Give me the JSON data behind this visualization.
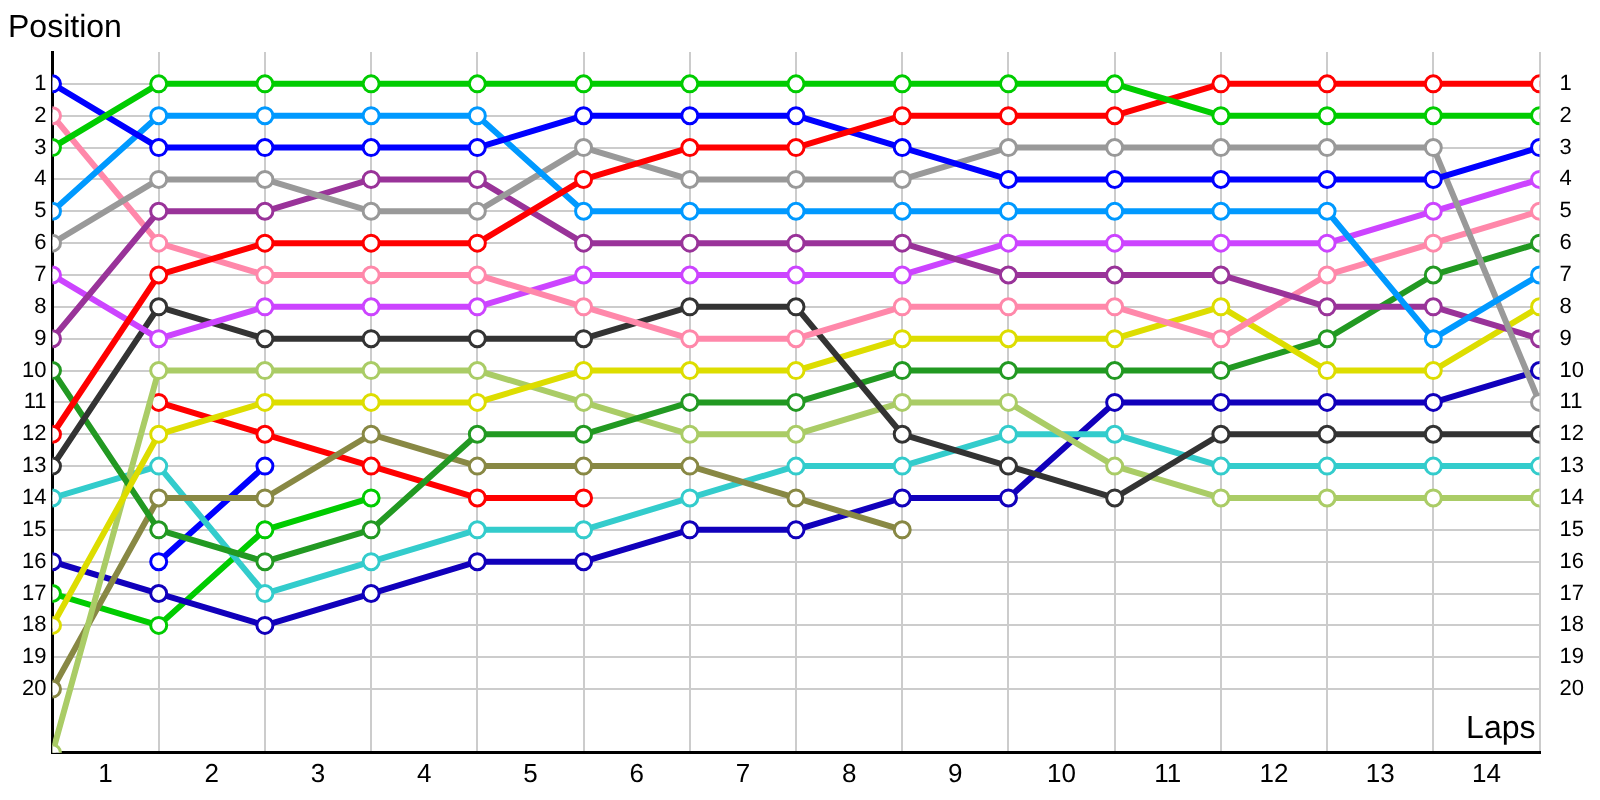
{
  "chart_data": {
    "type": "line",
    "xlabel": "Laps",
    "ylabel": "Position",
    "x": [
      0,
      1,
      2,
      3,
      4,
      5,
      6,
      7,
      8,
      9,
      10,
      11,
      12,
      13,
      14
    ],
    "xlim": [
      0,
      14
    ],
    "xticks": [
      {
        "value": 0,
        "label": null
      },
      {
        "value": 0.5,
        "label": "1"
      },
      {
        "value": 1,
        "label": null
      },
      {
        "value": 1.5,
        "label": "2"
      },
      {
        "value": 2,
        "label": null
      },
      {
        "value": 2.5,
        "label": "3"
      },
      {
        "value": 3,
        "label": null
      },
      {
        "value": 3.5,
        "label": "4"
      },
      {
        "value": 4,
        "label": null
      },
      {
        "value": 4.5,
        "label": "5"
      },
      {
        "value": 5,
        "label": null
      },
      {
        "value": 5.5,
        "label": "6"
      },
      {
        "value": 6,
        "label": null
      },
      {
        "value": 6.5,
        "label": "7"
      },
      {
        "value": 7,
        "label": null
      },
      {
        "value": 7.5,
        "label": "8"
      },
      {
        "value": 8,
        "label": null
      },
      {
        "value": 8.5,
        "label": "9"
      },
      {
        "value": 9,
        "label": null
      },
      {
        "value": 9.5,
        "label": "10"
      },
      {
        "value": 10,
        "label": null
      },
      {
        "value": 10.5,
        "label": "11"
      },
      {
        "value": 11,
        "label": null
      },
      {
        "value": 11.5,
        "label": "12"
      },
      {
        "value": 12,
        "label": null
      },
      {
        "value": 12.5,
        "label": "13"
      },
      {
        "value": 13,
        "label": null
      },
      {
        "value": 13.5,
        "label": "14"
      },
      {
        "value": 14,
        "label": null
      }
    ],
    "ylim": [
      22,
      0
    ],
    "yticks": [
      1,
      2,
      3,
      4,
      5,
      6,
      7,
      8,
      9,
      10,
      11,
      12,
      13,
      14,
      15,
      16,
      17,
      18,
      19,
      20
    ],
    "y2lim": [
      22,
      0
    ],
    "y2ticks": [
      1,
      2,
      3,
      4,
      5,
      6,
      7,
      8,
      9,
      10,
      11,
      12,
      13,
      14,
      15,
      16,
      17,
      18,
      19,
      20
    ],
    "grid": true,
    "legend": false,
    "marker": "circle",
    "line_style": "solid",
    "series": [
      {
        "color": "#00cc00",
        "values": [
          3,
          1,
          1,
          1,
          1,
          1,
          1,
          1,
          1,
          1,
          1,
          2,
          2,
          2,
          2
        ]
      },
      {
        "color": "#ff0000",
        "values": [
          12,
          7,
          6,
          6,
          6,
          4,
          3,
          3,
          2,
          2,
          2,
          1,
          1,
          1,
          1
        ]
      },
      {
        "color": "#0000ff",
        "values": [
          1,
          3,
          3,
          3,
          3,
          2,
          2,
          2,
          3,
          4,
          4,
          4,
          4,
          4,
          3
        ]
      },
      {
        "color": "#0099ff",
        "values": [
          5,
          2,
          2,
          2,
          2,
          5,
          5,
          5,
          5,
          5,
          5,
          5,
          5,
          9,
          7
        ]
      },
      {
        "color": "#999999",
        "values": [
          6,
          4,
          4,
          5,
          5,
          3,
          4,
          4,
          4,
          3,
          3,
          3,
          3,
          3,
          11
        ]
      },
      {
        "color": "#993399",
        "values": [
          9,
          5,
          5,
          4,
          4,
          6,
          6,
          6,
          6,
          7,
          7,
          7,
          8,
          8,
          9
        ]
      },
      {
        "color": "#ff88aa",
        "values": [
          2,
          6,
          7,
          7,
          7,
          8,
          9,
          9,
          8,
          8,
          8,
          9,
          7,
          6,
          5
        ]
      },
      {
        "color": "#cc44ff",
        "values": [
          7,
          9,
          8,
          8,
          8,
          7,
          7,
          7,
          7,
          6,
          6,
          6,
          6,
          5,
          4
        ]
      },
      {
        "color": "#333333",
        "values": [
          13,
          8,
          9,
          9,
          9,
          9,
          8,
          8,
          12,
          13,
          14,
          12,
          12,
          12,
          12
        ]
      },
      {
        "color": "#dddd00",
        "values": [
          18,
          12,
          11,
          11,
          11,
          10,
          10,
          10,
          9,
          9,
          9,
          8,
          10,
          10,
          8
        ]
      },
      {
        "color": "#229922",
        "values": [
          10,
          15,
          16,
          15,
          12,
          12,
          11,
          11,
          10,
          10,
          10,
          10,
          9,
          7,
          6
        ]
      },
      {
        "color": "#aacc66",
        "values": [
          22,
          10,
          10,
          10,
          10,
          11,
          12,
          12,
          11,
          11,
          13,
          14,
          14,
          14,
          14
        ]
      },
      {
        "color": "#888844",
        "values": [
          20,
          14,
          14,
          12,
          13,
          13,
          13,
          14,
          15,
          null,
          null,
          null,
          null,
          null,
          null
        ]
      },
      {
        "color": "#33cccc",
        "values": [
          14,
          13,
          17,
          16,
          15,
          15,
          14,
          13,
          13,
          12,
          12,
          13,
          13,
          13,
          13
        ]
      },
      {
        "color": "#1100bb",
        "values": [
          16,
          17,
          18,
          17,
          16,
          16,
          15,
          15,
          14,
          14,
          11,
          11,
          11,
          11,
          10
        ]
      },
      {
        "color": "#ff0000",
        "values": [
          null,
          11,
          12,
          13,
          14,
          14,
          null,
          null,
          null,
          null,
          null,
          null,
          null,
          null,
          null
        ]
      },
      {
        "color": "#0000ff",
        "values": [
          null,
          16,
          13,
          null,
          null,
          null,
          null,
          null,
          null,
          null,
          null,
          null,
          null,
          null,
          null
        ]
      },
      {
        "color": "#00cc00",
        "values": [
          17,
          18,
          15,
          14,
          null,
          null,
          null,
          null,
          null,
          null,
          null,
          null,
          null,
          null,
          null
        ]
      }
    ]
  }
}
